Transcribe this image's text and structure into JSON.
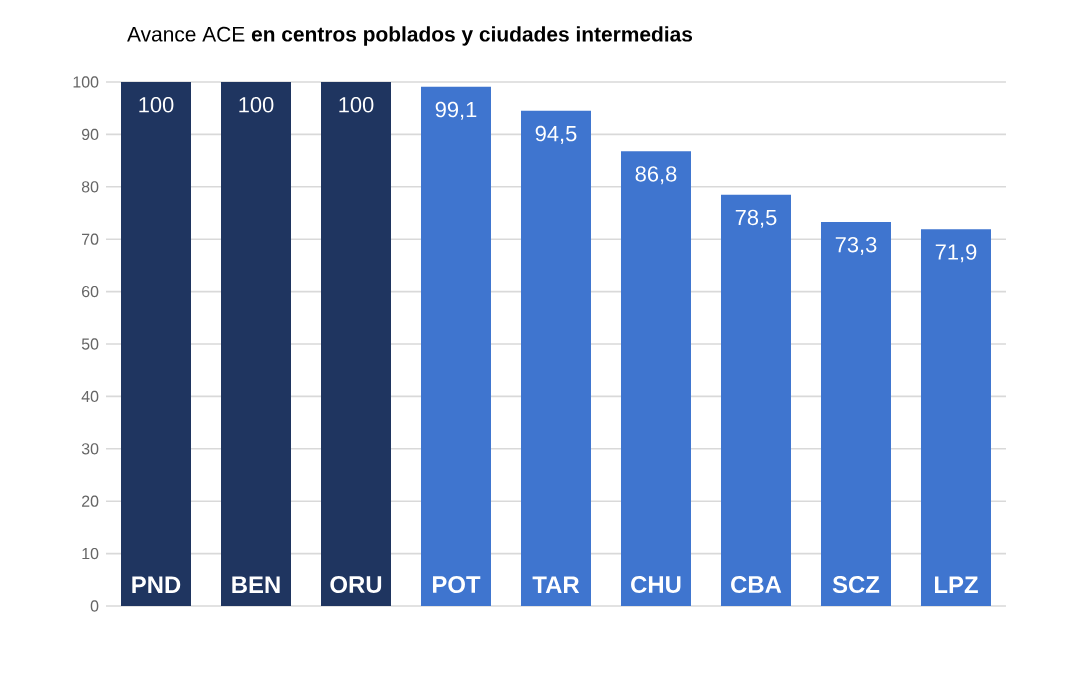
{
  "chart_data": {
    "type": "bar",
    "title": "Avance ACE **en centros poblados y ciudades intermedias**",
    "categories": [
      "PND",
      "BEN",
      "ORU",
      "POT",
      "TAR",
      "CHU",
      "CBA",
      "SCZ",
      "LPZ"
    ],
    "values": [
      100,
      100,
      100,
      99.1,
      94.5,
      86.8,
      78.5,
      73.3,
      71.9
    ],
    "value_labels": [
      "100",
      "100",
      "100",
      "99,1",
      "94,5",
      "86,8",
      "78,5",
      "73,3",
      "71,9"
    ],
    "colors": [
      "#1f3560",
      "#1f3560",
      "#1f3560",
      "#3f75cf",
      "#3f75cf",
      "#3f75cf",
      "#3f75cf",
      "#3f75cf",
      "#3f75cf"
    ],
    "ylim": [
      0,
      100
    ],
    "yticks": [
      0,
      10,
      20,
      30,
      40,
      50,
      60,
      70,
      80,
      90,
      100
    ],
    "grid": "y"
  }
}
